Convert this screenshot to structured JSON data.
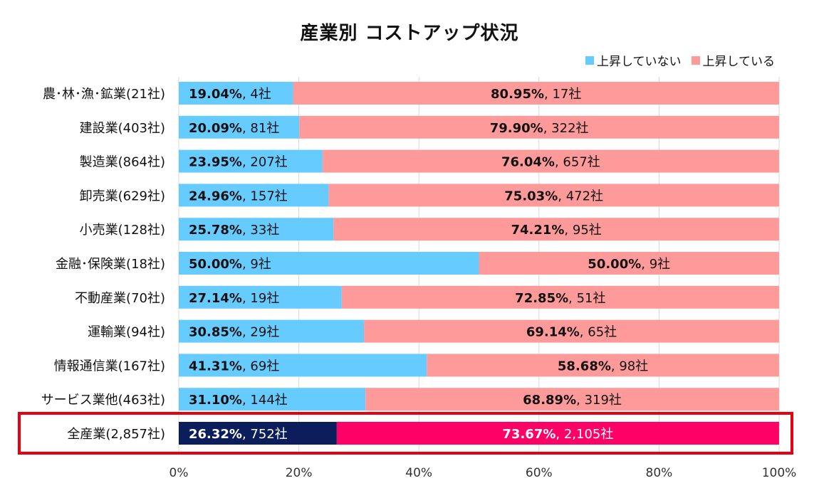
{
  "chart_data": {
    "type": "bar",
    "orientation": "horizontal",
    "stacked": true,
    "title": "産業別 コストアップ状況",
    "categories": [
      "農･林･漁･鉱業(21社)",
      "建設業(403社)",
      "製造業(864社)",
      "卸売業(629社)",
      "小売業(128社)",
      "金融･保険業(18社)",
      "不動産業(70社)",
      "運輸業(94社)",
      "情報通信業(167社)",
      "サービス業他(463社)",
      "全産業(2,857社)"
    ],
    "series": [
      {
        "name": "上昇していない",
        "values": [
          19.04,
          20.09,
          23.95,
          24.96,
          25.78,
          50.0,
          27.14,
          30.85,
          41.31,
          31.1,
          26.32
        ],
        "labels_pct": [
          "19.04%",
          "20.09%",
          "23.95%",
          "24.96%",
          "25.78%",
          "50.00%",
          "27.14%",
          "30.85%",
          "41.31%",
          "31.10%",
          "26.32%"
        ],
        "labels_count": [
          ", 4社",
          ", 81社",
          ", 207社",
          ", 157社",
          ", 33社",
          ", 9社",
          ", 19社",
          ", 29社",
          ", 69社",
          ", 144社",
          ", 752社"
        ],
        "color": "#66ccff",
        "highlight_color": "#0b1e5b"
      },
      {
        "name": "上昇している",
        "values": [
          80.95,
          79.9,
          76.04,
          75.03,
          74.21,
          50.0,
          72.85,
          69.14,
          58.68,
          68.89,
          73.67
        ],
        "labels_pct": [
          "80.95%",
          "79.90%",
          "76.04%",
          "75.03%",
          "74.21%",
          "50.00%",
          "72.85%",
          "69.14%",
          "58.68%",
          "68.89%",
          "73.67%"
        ],
        "labels_count": [
          ", 17社",
          ", 322社",
          ", 657社",
          ", 472社",
          ", 95社",
          ", 9社",
          ", 51社",
          ", 65社",
          ", 98社",
          ", 319社",
          ", 2,105社"
        ],
        "color": "#ff9a9a",
        "highlight_color": "#ff0066"
      }
    ],
    "x_tick_labels": [
      "0%",
      "20%",
      "40%",
      "60%",
      "80%",
      "100%"
    ],
    "xlim": [
      0,
      100
    ],
    "grid": true,
    "legend_position": "top-right",
    "highlighted_category": "全産業(2,857社)",
    "highlight_box_color": "#e60012"
  }
}
